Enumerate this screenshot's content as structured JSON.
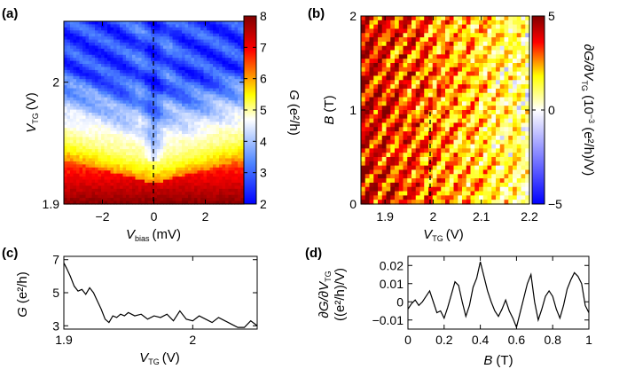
{
  "chart_data": [
    {
      "panel": "(a)",
      "type": "heatmap",
      "xlabel": {
        "main": "V",
        "sub": "bias",
        "unit": "(mV)"
      },
      "ylabel": {
        "main": "V",
        "sub": "TG",
        "unit": "(V)"
      },
      "xlim": [
        -3.5,
        3.5
      ],
      "ylim": [
        1.9,
        2.05
      ],
      "xticks": [
        -2,
        0,
        2
      ],
      "xtick_labels": [
        "−2",
        "0",
        "2"
      ],
      "yticks": [
        1.9,
        2
      ],
      "ytick_labels": [
        "1.9",
        "2"
      ],
      "colorbar": {
        "label": {
          "main": "G",
          "unit": "(e²/h)"
        },
        "range": [
          2,
          8
        ],
        "ticks": [
          2,
          3,
          4,
          5,
          6,
          7,
          8
        ],
        "tick_labels": [
          "2",
          "3",
          "4",
          "5",
          "6",
          "7",
          "8"
        ],
        "colormap": [
          "#0000ff",
          "#4f86ff",
          "#ffffff",
          "#ffff00",
          "#ff0000",
          "#800000"
        ]
      },
      "annotation": "dashed vertical line at V_bias = 0"
    },
    {
      "panel": "(b)",
      "type": "heatmap",
      "xlabel": {
        "main": "V",
        "sub": "TG",
        "unit": "(V)"
      },
      "ylabel": {
        "main": "B",
        "unit": "(T)"
      },
      "xlim": [
        1.85,
        2.2
      ],
      "ylim": [
        0,
        2
      ],
      "xticks": [
        1.9,
        2,
        2.1,
        2.2
      ],
      "xtick_labels": [
        "1.9",
        "2",
        "2.1",
        "2.2"
      ],
      "yticks": [
        0,
        1,
        2
      ],
      "ytick_labels": [
        "0",
        "1",
        "2"
      ],
      "colorbar": {
        "label": {
          "pre": "∂G/∂V",
          "sub": "TG",
          "mid": " (10",
          "sup": "−3",
          "post": " (e²/h)/V)"
        },
        "range": [
          -5,
          5
        ],
        "ticks": [
          -5,
          0,
          5
        ],
        "tick_labels": [
          "−5",
          "0",
          "5"
        ],
        "colormap": [
          "#0000ff",
          "#ffffff",
          "#ffff00",
          "#ff0000",
          "#800000"
        ]
      },
      "annotation": "dashed vertical line at V_TG = 2.0 from B = 0 to 1 T"
    },
    {
      "panel": "(c)",
      "type": "line",
      "xlabel": {
        "main": "V",
        "sub": "TG",
        "unit": "(V)"
      },
      "ylabel": {
        "main": "G",
        "unit": "(e²/h)"
      },
      "xlim": [
        1.9,
        2.05
      ],
      "ylim": [
        2.8,
        7.2
      ],
      "xticks": [
        1.9,
        2
      ],
      "xtick_labels": [
        "1.9",
        "2"
      ],
      "yticks": [
        3,
        5,
        7
      ],
      "ytick_labels": [
        "3",
        "5",
        "7"
      ],
      "series": [
        {
          "x": [
            1.9,
            1.902,
            1.905,
            1.908,
            1.911,
            1.914,
            1.917,
            1.92,
            1.923,
            1.926,
            1.929,
            1.932,
            1.935,
            1.938,
            1.941,
            1.944,
            1.947,
            1.95,
            1.955,
            1.96,
            1.965,
            1.97,
            1.975,
            1.98,
            1.985,
            1.99,
            1.995,
            2.0,
            2.005,
            2.01,
            2.015,
            2.02,
            2.025,
            2.03,
            2.035,
            2.04,
            2.045,
            2.05
          ],
          "y": [
            6.8,
            6.5,
            6.0,
            5.4,
            5.1,
            5.2,
            4.9,
            5.3,
            5.0,
            4.5,
            4.0,
            3.4,
            3.2,
            3.6,
            3.5,
            3.7,
            3.6,
            3.8,
            3.6,
            3.7,
            3.4,
            3.6,
            3.5,
            3.7,
            3.3,
            3.9,
            3.4,
            3.3,
            3.6,
            3.4,
            3.2,
            3.5,
            3.3,
            3.1,
            2.9,
            2.9,
            3.3,
            3.0
          ]
        }
      ]
    },
    {
      "panel": "(d)",
      "type": "line",
      "xlabel": {
        "main": "B",
        "unit": "(T)"
      },
      "ylabel": {
        "pre": "∂G/∂V",
        "sub": "TG",
        "line2": "((e²/h)/V)"
      },
      "xlim": [
        0,
        1
      ],
      "ylim": [
        -0.015,
        0.025
      ],
      "xticks": [
        0,
        0.2,
        0.4,
        0.6,
        0.8,
        1
      ],
      "xtick_labels": [
        "0",
        "0.2",
        "0.4",
        "0.6",
        "0.8",
        "1"
      ],
      "yticks": [
        -0.01,
        0,
        0.01,
        0.02
      ],
      "ytick_labels": [
        "−0.01",
        "0",
        "0.01",
        "0.02"
      ],
      "series": [
        {
          "x": [
            0,
            0.02,
            0.04,
            0.06,
            0.08,
            0.1,
            0.12,
            0.14,
            0.16,
            0.18,
            0.2,
            0.22,
            0.24,
            0.26,
            0.28,
            0.3,
            0.32,
            0.34,
            0.36,
            0.38,
            0.4,
            0.42,
            0.44,
            0.46,
            0.48,
            0.5,
            0.52,
            0.54,
            0.56,
            0.58,
            0.6,
            0.62,
            0.64,
            0.66,
            0.68,
            0.7,
            0.72,
            0.74,
            0.76,
            0.78,
            0.8,
            0.82,
            0.84,
            0.86,
            0.88,
            0.9,
            0.92,
            0.94,
            0.96,
            0.98,
            1.0
          ],
          "y": [
            -0.004,
            -0.001,
            0.001,
            -0.002,
            0.0,
            0.003,
            0.006,
            0.0,
            -0.006,
            -0.005,
            -0.009,
            -0.003,
            0.004,
            0.011,
            0.009,
            0.0,
            -0.008,
            -0.002,
            0.008,
            0.013,
            0.022,
            0.014,
            0.006,
            0.0,
            -0.005,
            -0.008,
            -0.004,
            0.001,
            -0.005,
            -0.009,
            -0.014,
            -0.006,
            0.002,
            0.01,
            0.015,
            0.0,
            -0.01,
            -0.004,
            0.003,
            0.006,
            0.003,
            -0.004,
            -0.009,
            -0.002,
            0.007,
            0.012,
            0.016,
            0.014,
            0.01,
            -0.002,
            -0.006
          ]
        }
      ]
    }
  ]
}
